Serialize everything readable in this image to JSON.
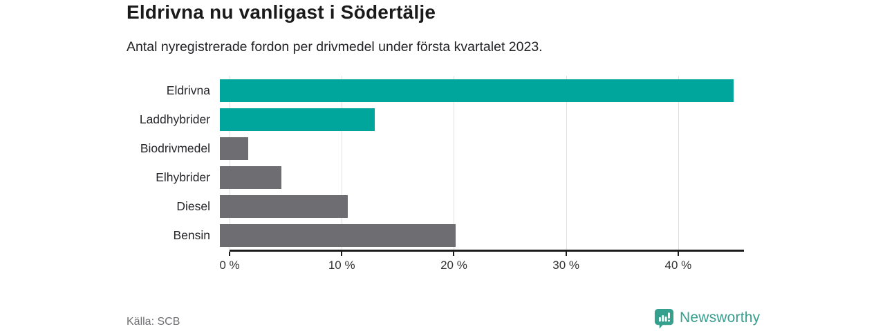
{
  "chart_data": {
    "type": "bar",
    "orientation": "horizontal",
    "title": "Eldrivna nu vanligast i Södertälje",
    "subtitle": "Antal nyregistrerade fordon per drivmedel under första kvartalet 2023.",
    "categories": [
      "Eldrivna",
      "Laddhybrider",
      "Biodrivmedel",
      "Elhybrider",
      "Diesel",
      "Bensin"
    ],
    "values": [
      45.8,
      13.8,
      2.5,
      5.5,
      11.4,
      21.0
    ],
    "unit": "%",
    "xlim": [
      0,
      45.8
    ],
    "xticks": [
      0,
      10,
      20,
      30,
      40
    ],
    "xtick_labels": [
      "0 %",
      "10 %",
      "20 %",
      "30 %",
      "40 %"
    ],
    "bar_colors": [
      "#00a59b",
      "#00a59b",
      "#6e6e72",
      "#6e6e72",
      "#6e6e72",
      "#6e6e72"
    ],
    "grid": "vertical-gridlines-behind-bars",
    "legend": "none",
    "source": "Källa: SCB"
  },
  "footer": {
    "brand": "Newsworthy"
  },
  "colors": {
    "highlight_teal": "#00a59b",
    "base_gray": "#6e6e72",
    "gridline": "#e0e0e0",
    "axis": "#1a1a1a",
    "title_text": "#1a1a1a",
    "source_text": "#6e6e73",
    "brand_teal": "#35a08e"
  },
  "icons": {
    "newsworthy_logo": "speech-bubble-bar-chart-icon"
  }
}
